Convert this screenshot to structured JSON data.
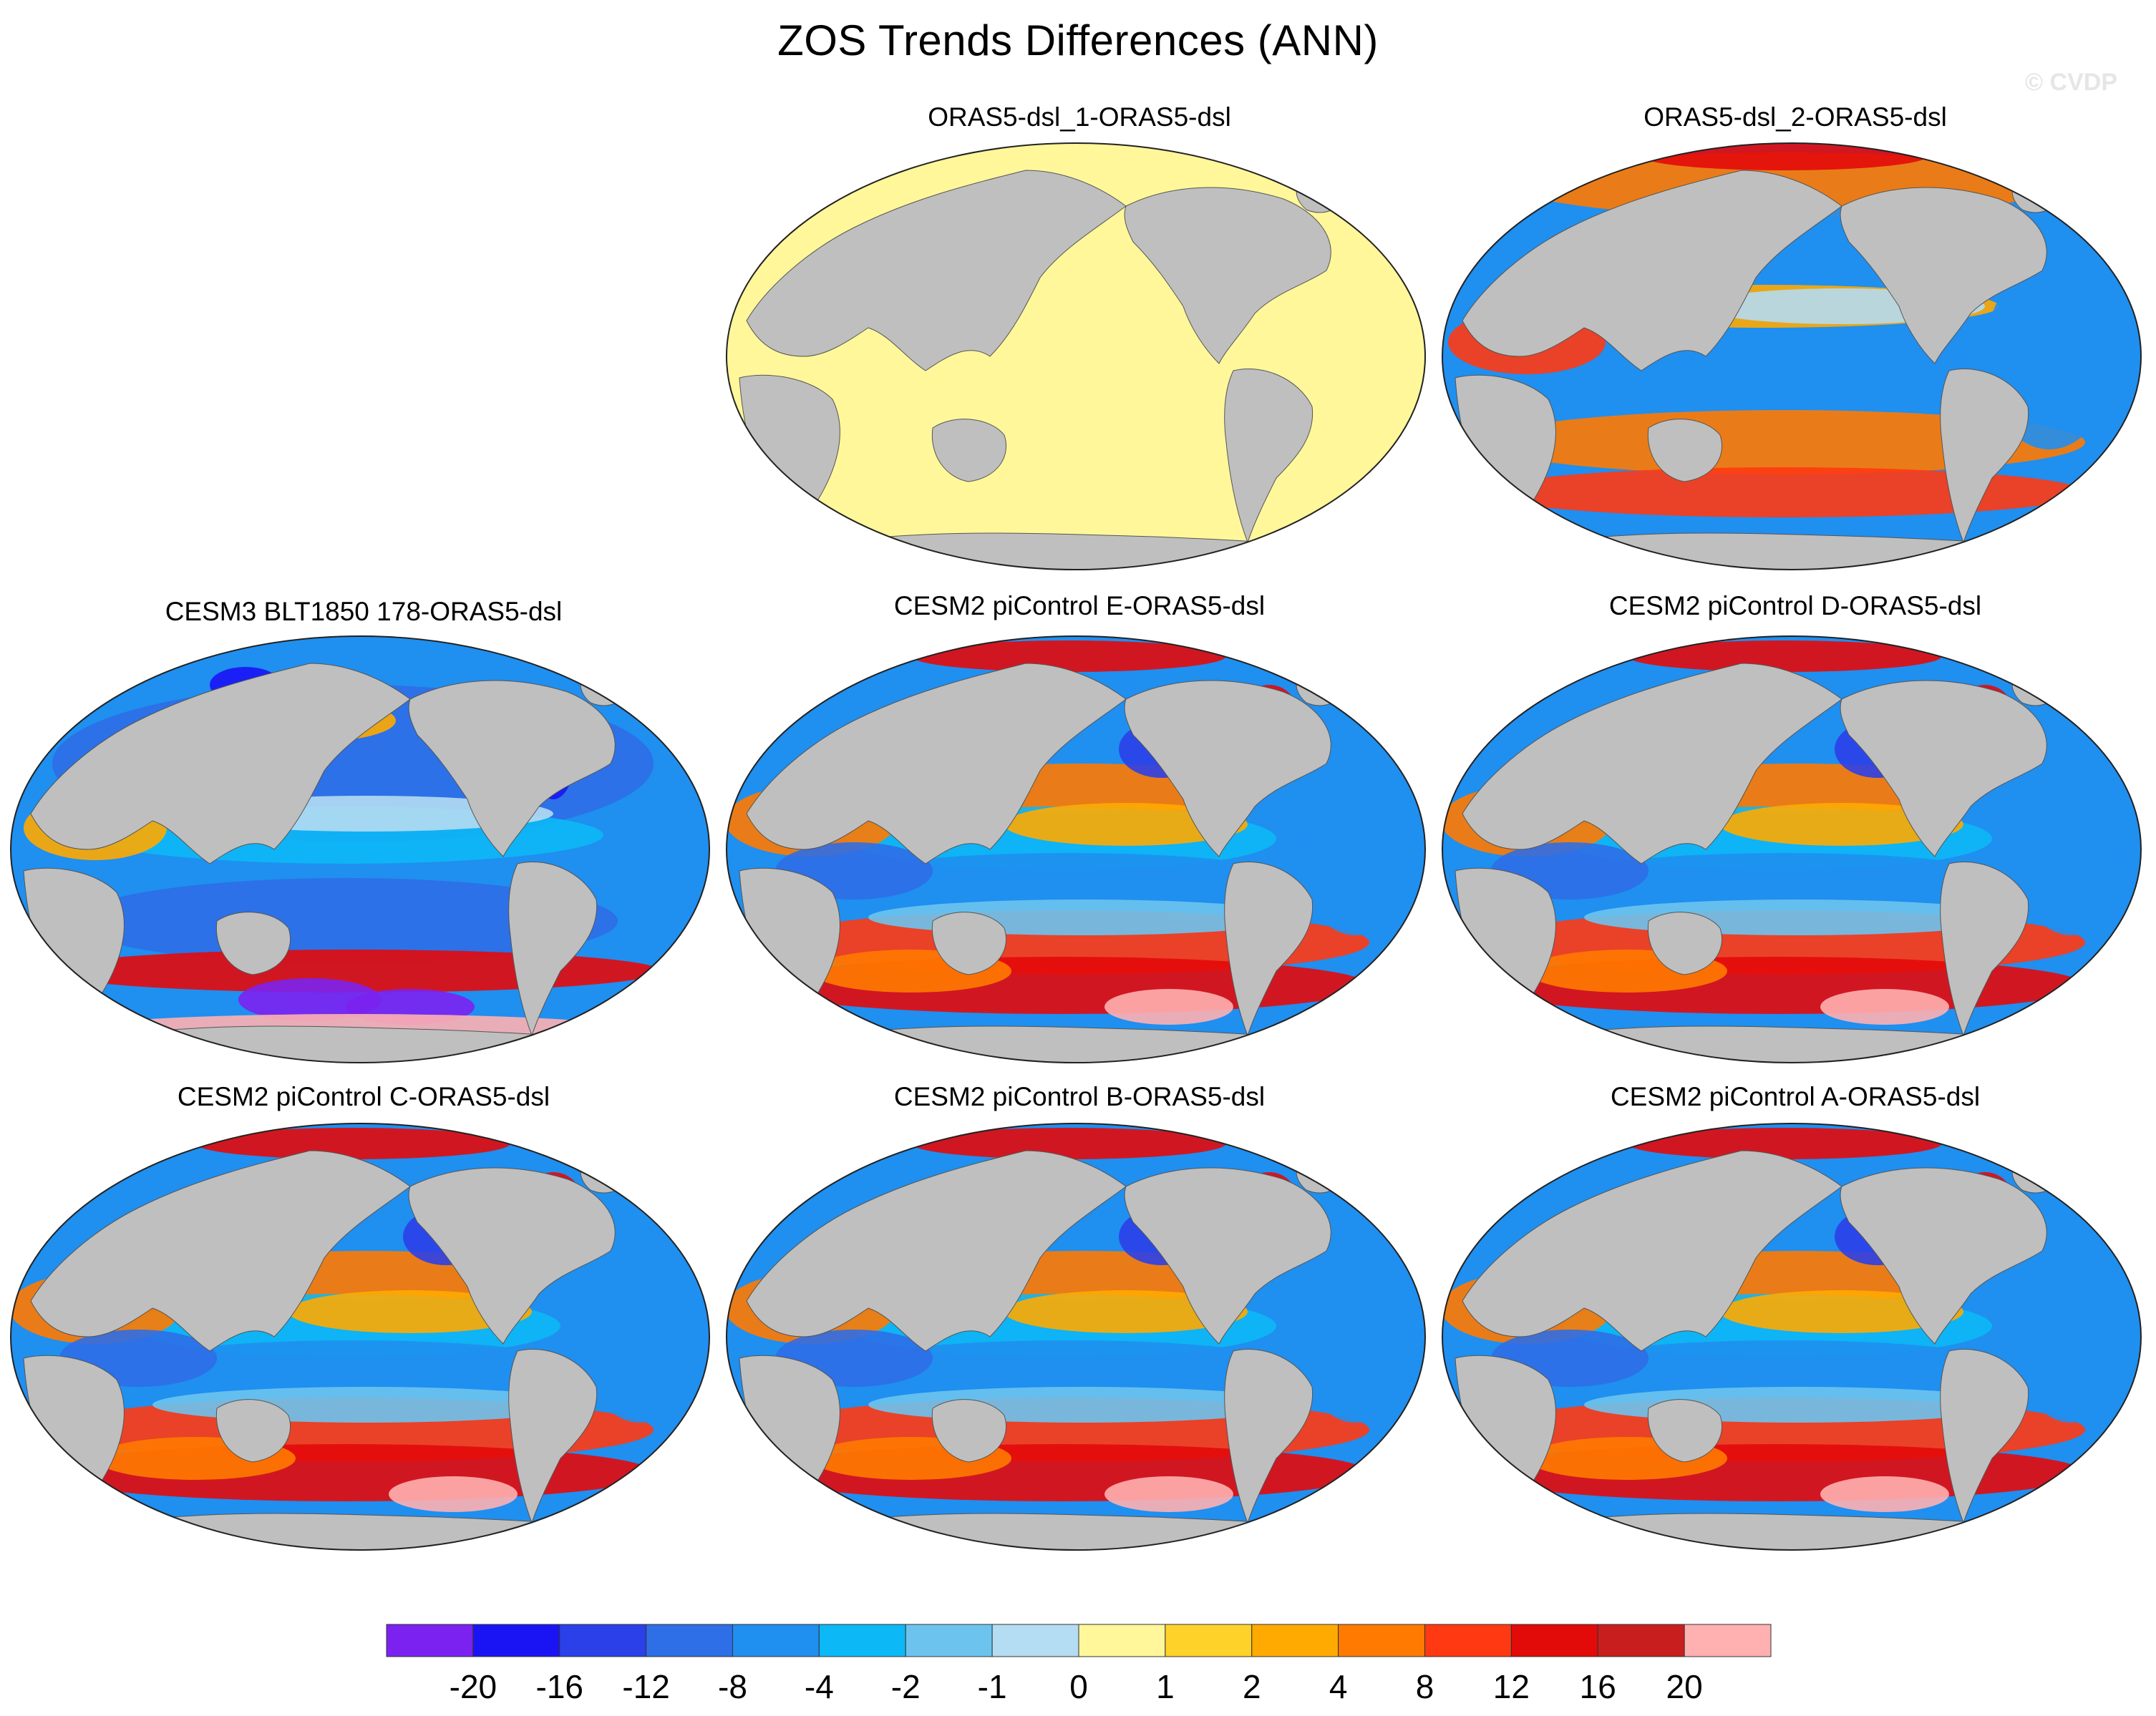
{
  "title": "ZOS Trends Differences (ANN)",
  "watermark": "© CVDP",
  "panels": [
    {
      "name": "ORAS5-dsl_1-ORAS5-dsl",
      "uniform": true
    },
    {
      "name": "ORAS5-dsl_2-ORAS5-dsl"
    },
    {
      "name": "CESM3 BLT1850 178-ORAS5-dsl"
    },
    {
      "name": "CESM2 piControl E-ORAS5-dsl"
    },
    {
      "name": "CESM2 piControl D-ORAS5-dsl"
    },
    {
      "name": "CESM2 piControl C-ORAS5-dsl"
    },
    {
      "name": "CESM2 piControl B-ORAS5-dsl"
    },
    {
      "name": "CESM2 piControl A-ORAS5-dsl"
    }
  ],
  "colorbar": {
    "colors": [
      "#7b22f0",
      "#1a14f5",
      "#2b40e8",
      "#2e6ee6",
      "#1f8ff0",
      "#0cb8f5",
      "#6cc4ee",
      "#b4dcf2",
      "#fff79a",
      "#ffd22a",
      "#ffaa00",
      "#ff7a00",
      "#ff3a12",
      "#e30a0a",
      "#c81e1e",
      "#ffb0b0"
    ],
    "labels": [
      "-20",
      "-16",
      "-12",
      "-8",
      "-4",
      "-2",
      "-1",
      "0",
      "1",
      "2",
      "4",
      "8",
      "12",
      "16",
      "20"
    ]
  },
  "colors": {
    "land": "#bfbfbf",
    "ocean_zero": "#fff79a"
  }
}
